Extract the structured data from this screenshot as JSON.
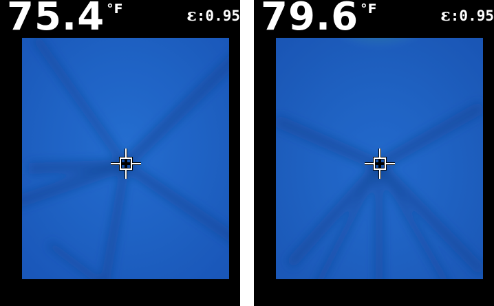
{
  "panels": [
    {
      "temperature": "75.4",
      "unit": "°F",
      "emissivity_symbol": "ε",
      "emissivity_value": ":0.95"
    },
    {
      "temperature": "79.6",
      "unit": "°F",
      "emissivity_symbol": "ε",
      "emissivity_value": ":0.95"
    }
  ],
  "colors": {
    "background": "#000000",
    "thermal_base": "#1f62c8",
    "thermal_dark_band": "#164fa8",
    "hot_spot": "#5fb23a",
    "overlay_text": "#ffffff"
  },
  "icons": {
    "reticle": "crosshair-icon"
  }
}
